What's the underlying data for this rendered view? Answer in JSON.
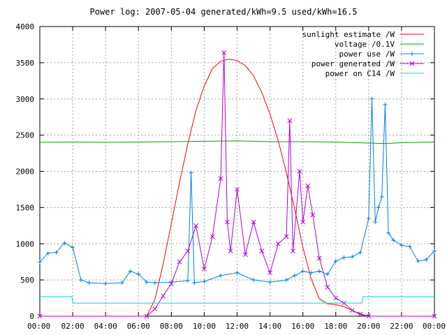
{
  "chart_data": {
    "type": "line",
    "title": "Power log: 2007-05-04 generated/kWh=9.5 used/kWh=16.5",
    "xlabel": "",
    "ylabel": "",
    "xlim": [
      "00:00",
      "24:00"
    ],
    "ylim": [
      0,
      4000
    ],
    "x_ticks": [
      "00:00",
      "02:00",
      "04:00",
      "06:00",
      "08:00",
      "10:00",
      "12:00",
      "14:00",
      "16:00",
      "18:00",
      "20:00",
      "22:00",
      "00:00"
    ],
    "y_ticks": [
      0,
      500,
      1000,
      1500,
      2000,
      2500,
      3000,
      3500,
      4000
    ],
    "grid": true,
    "legend_position": "top-right",
    "series": [
      {
        "name": "sunlight estimate /W",
        "color": "#ff0000",
        "marker": "none",
        "x_hours": [
          0,
          6.5,
          7,
          7.5,
          8,
          8.5,
          9,
          9.5,
          10,
          10.5,
          11,
          11.5,
          11.75,
          12,
          12.5,
          13,
          13.5,
          14,
          14.5,
          15,
          15.5,
          16,
          16.5,
          17,
          17.5,
          18,
          18.5,
          19,
          19.5,
          20,
          24
        ],
        "values": [
          0,
          0,
          230,
          720,
          1280,
          1850,
          2380,
          2840,
          3180,
          3420,
          3520,
          3550,
          3540,
          3530,
          3460,
          3320,
          3090,
          2790,
          2420,
          1980,
          1480,
          950,
          520,
          240,
          170,
          160,
          130,
          80,
          20,
          0,
          0
        ]
      },
      {
        "name": "voltage /0.1V",
        "color": "#00a000",
        "marker": "none",
        "x_hours": [
          0,
          2,
          4,
          6,
          8,
          10,
          12,
          14,
          16,
          18,
          20,
          21,
          22,
          24
        ],
        "values": [
          2400,
          2405,
          2400,
          2405,
          2410,
          2415,
          2420,
          2410,
          2410,
          2405,
          2390,
          2385,
          2395,
          2405
        ]
      },
      {
        "name": "power use /W",
        "color": "#0080e0",
        "marker": "plus",
        "x_hours": [
          0,
          0.5,
          1,
          1.5,
          2,
          2.5,
          3,
          4,
          5,
          5.5,
          6,
          6.5,
          7,
          8,
          9,
          9.2,
          9.4,
          10,
          11,
          12,
          13,
          14,
          15,
          15.5,
          16,
          16.5,
          17,
          17.5,
          18,
          18.5,
          19,
          19.5,
          20,
          20.2,
          20.4,
          20.6,
          20.8,
          21,
          21.2,
          21.5,
          22,
          22.5,
          23,
          23.5,
          24
        ],
        "values": [
          750,
          870,
          880,
          1010,
          950,
          500,
          460,
          450,
          460,
          620,
          580,
          470,
          460,
          470,
          490,
          1980,
          460,
          480,
          560,
          600,
          500,
          470,
          500,
          560,
          620,
          600,
          620,
          580,
          760,
          810,
          820,
          880,
          1350,
          3000,
          1300,
          1500,
          1650,
          2920,
          1150,
          1050,
          980,
          960,
          760,
          780,
          900
        ]
      },
      {
        "name": "power generated /W",
        "color": "#b000e0",
        "marker": "cross",
        "x_hours": [
          0,
          6.5,
          7,
          7.5,
          8,
          8.5,
          9,
          9.5,
          10,
          10.5,
          11,
          11.2,
          11.4,
          11.6,
          12,
          12.5,
          13,
          13.5,
          14,
          14.5,
          15,
          15.2,
          15.4,
          15.8,
          16,
          16.3,
          16.6,
          17,
          17.5,
          18,
          18.5,
          19,
          19.5,
          20,
          24
        ],
        "values": [
          0,
          0,
          100,
          280,
          450,
          750,
          900,
          1250,
          650,
          1100,
          1900,
          3640,
          1300,
          900,
          1750,
          850,
          1300,
          900,
          600,
          1000,
          1100,
          2700,
          900,
          2000,
          1300,
          1800,
          1400,
          800,
          400,
          250,
          180,
          80,
          30,
          0,
          0
        ]
      },
      {
        "name": "power on C14 /W",
        "color": "#00d8d8",
        "marker": "none",
        "x_hours": [
          0,
          1.95,
          2,
          19.6,
          19.65,
          24
        ],
        "values": [
          270,
          270,
          180,
          180,
          270,
          270
        ]
      }
    ]
  }
}
